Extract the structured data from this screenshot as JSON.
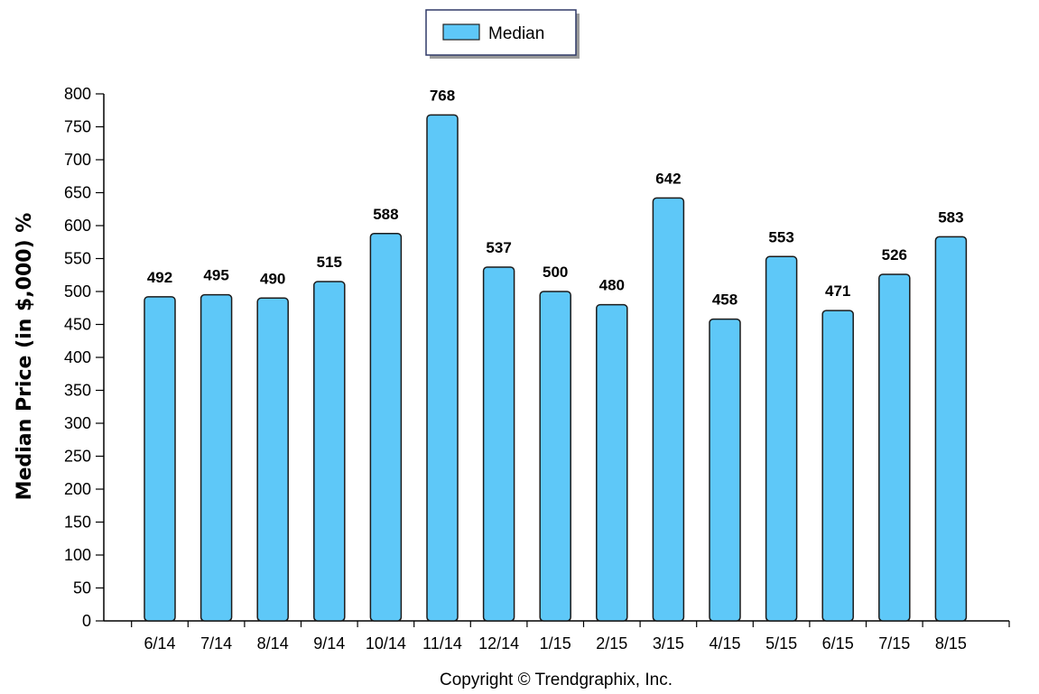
{
  "chart_data": {
    "type": "bar",
    "categories": [
      "6/14",
      "7/14",
      "8/14",
      "9/14",
      "10/14",
      "11/14",
      "12/14",
      "1/15",
      "2/15",
      "3/15",
      "4/15",
      "5/15",
      "6/15",
      "7/15",
      "8/15"
    ],
    "series": [
      {
        "name": "Median",
        "values": [
          492,
          495,
          490,
          515,
          588,
          768,
          537,
          500,
          480,
          642,
          458,
          553,
          471,
          526,
          583
        ],
        "color": "#5ec8f8"
      }
    ],
    "xlabel": "",
    "ylabel": "Median Price (in $,000) %",
    "ylim": [
      0,
      800
    ],
    "yticks": [
      0,
      50,
      100,
      150,
      200,
      250,
      300,
      350,
      400,
      450,
      500,
      550,
      600,
      650,
      700,
      750,
      800
    ],
    "grid": false,
    "legend_position": "top-center",
    "data_labels": true
  },
  "footer": {
    "copyright": "Copyright © Trendgraphix, Inc."
  }
}
